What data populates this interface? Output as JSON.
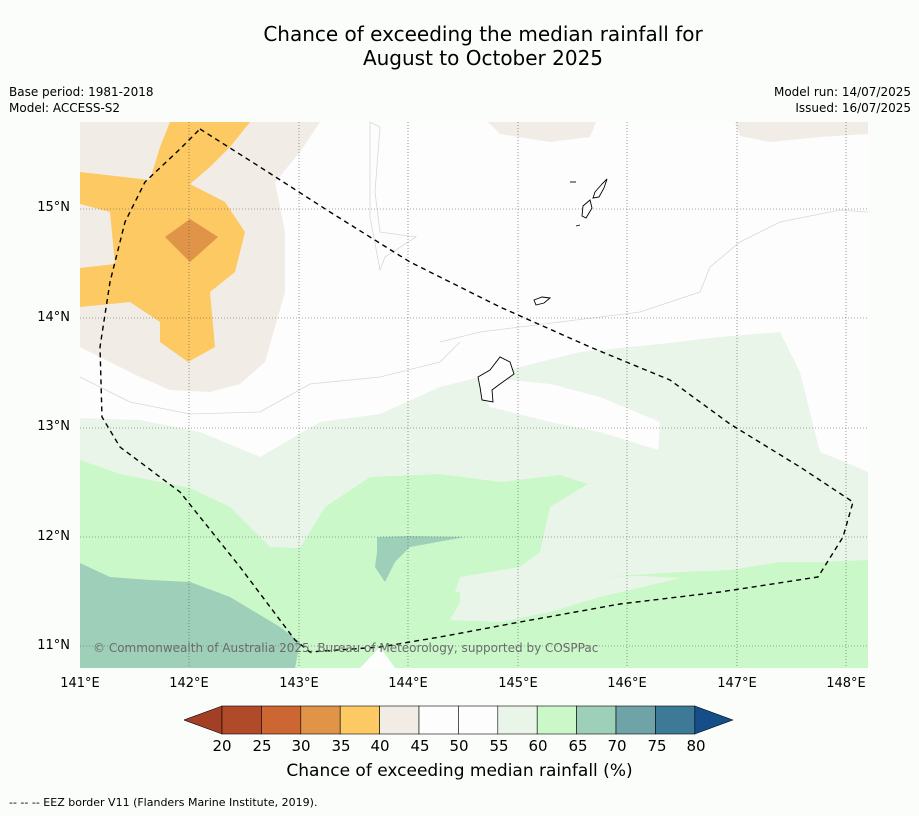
{
  "title": {
    "line1": "Chance of exceeding the median rainfall for",
    "line2": "August to October 2025"
  },
  "meta": {
    "base_period": "Base period: 1981-2018",
    "model": "Model: ACCESS-S2",
    "model_run": "Model run: 14/07/2025",
    "issued": "Issued: 16/07/2025"
  },
  "map": {
    "lat_labels": [
      "15°N",
      "14°N",
      "13°N",
      "12°N",
      "11°N"
    ],
    "lon_labels": [
      "141°E",
      "142°E",
      "143°E",
      "144°E",
      "145°E",
      "146°E",
      "147°E",
      "148°E"
    ],
    "copyright": "© Commonwealth of Australia 2025, Bureau of Meteorology, supported by COSPPac",
    "extent": {
      "lon": [
        141.0,
        148.2
      ],
      "lat": [
        10.8,
        15.8
      ]
    }
  },
  "colorbar": {
    "ticks": [
      "20",
      "25",
      "30",
      "35",
      "40",
      "45",
      "50",
      "55",
      "60",
      "65",
      "70",
      "75",
      "80"
    ],
    "colors": [
      "#b14a29",
      "#cc6633",
      "#e09448",
      "#fcc962",
      "#f2ece6",
      "#fdfdfd",
      "#fdfdfd",
      "#eaf5ea",
      "#caf8c9",
      "#9ecfb9",
      "#6ea4a8",
      "#3e7a97"
    ],
    "under_color": "#a23f25",
    "over_color": "#154e88",
    "label": "Chance of exceeding median rainfall (%)"
  },
  "footnote": "--  --  -- EEZ border V11 (Flanders Marine Institute, 2019)."
}
